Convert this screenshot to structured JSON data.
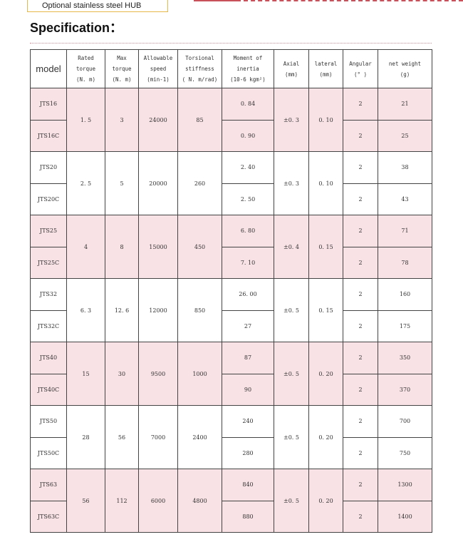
{
  "hub_label": "Optional  stainless steel  HUB",
  "title": "Specification：",
  "colors": {
    "pink_row": "#f9e2e6",
    "accent": "#c8505a"
  },
  "headers": [
    [
      "model"
    ],
    [
      "Rated",
      "torque",
      "(N. m)"
    ],
    [
      "Max",
      "torque",
      "(N. m)"
    ],
    [
      "Allowable",
      "speed",
      "(min-1)"
    ],
    [
      "Torsional",
      "stiffness",
      "( N. m/rad)"
    ],
    [
      "Moment of",
      "inertia",
      "(10-6 kgm²)"
    ],
    [
      "Axial",
      "(mm)"
    ],
    [
      "lateral",
      "(mm)"
    ],
    [
      "Angular",
      "(° )"
    ],
    [
      "net weight",
      "(g)"
    ]
  ],
  "groups": [
    {
      "models": [
        "JTS16",
        "JTS16C"
      ],
      "rated": "1. 5",
      "max": "3",
      "speed": "24000",
      "stiff": "85",
      "inertia": [
        "0. 84",
        "0. 90"
      ],
      "axial": "±0. 3",
      "lateral": "0. 10",
      "angular": [
        "2",
        "2"
      ],
      "weight": [
        "21",
        "25"
      ]
    },
    {
      "models": [
        "JTS20",
        "JTS20C"
      ],
      "rated": "2. 5",
      "max": "5",
      "speed": "20000",
      "stiff": "260",
      "inertia": [
        "2. 40",
        "2. 50"
      ],
      "axial": "±0. 3",
      "lateral": "0. 10",
      "angular": [
        "2",
        "2"
      ],
      "weight": [
        "38",
        "43"
      ]
    },
    {
      "models": [
        "JTS25",
        "JTS25C"
      ],
      "rated": "4",
      "max": "8",
      "speed": "15000",
      "stiff": "450",
      "inertia": [
        "6. 80",
        "7. 10"
      ],
      "axial": "±0. 4",
      "lateral": "0. 15",
      "angular": [
        "2",
        "2"
      ],
      "weight": [
        "71",
        "78"
      ]
    },
    {
      "models": [
        "JTS32",
        "JTS32C"
      ],
      "rated": "6. 3",
      "max": "12. 6",
      "speed": "12000",
      "stiff": "850",
      "inertia": [
        "26. 00",
        "27"
      ],
      "axial": "±0. 5",
      "lateral": "0. 15",
      "angular": [
        "2",
        "2"
      ],
      "weight": [
        "160",
        "175"
      ]
    },
    {
      "models": [
        "JTS40",
        "JTS40C"
      ],
      "rated": "15",
      "max": "30",
      "speed": "9500",
      "stiff": "1000",
      "inertia": [
        "87",
        "90"
      ],
      "axial": "±0. 5",
      "lateral": "0. 20",
      "angular": [
        "2",
        "2"
      ],
      "weight": [
        "350",
        "370"
      ]
    },
    {
      "models": [
        "JTS50",
        "JTS50C"
      ],
      "rated": "28",
      "max": "56",
      "speed": "7000",
      "stiff": "2400",
      "inertia": [
        "240",
        "280"
      ],
      "axial": "±0. 5",
      "lateral": "0. 20",
      "angular": [
        "2",
        "2"
      ],
      "weight": [
        "700",
        "750"
      ]
    },
    {
      "models": [
        "JTS63",
        "JTS63C"
      ],
      "rated": "56",
      "max": "112",
      "speed": "6000",
      "stiff": "4800",
      "inertia": [
        "840",
        "880"
      ],
      "axial": "±0. 5",
      "lateral": "0. 20",
      "angular": [
        "2",
        "2"
      ],
      "weight": [
        "1300",
        "1400"
      ]
    }
  ]
}
